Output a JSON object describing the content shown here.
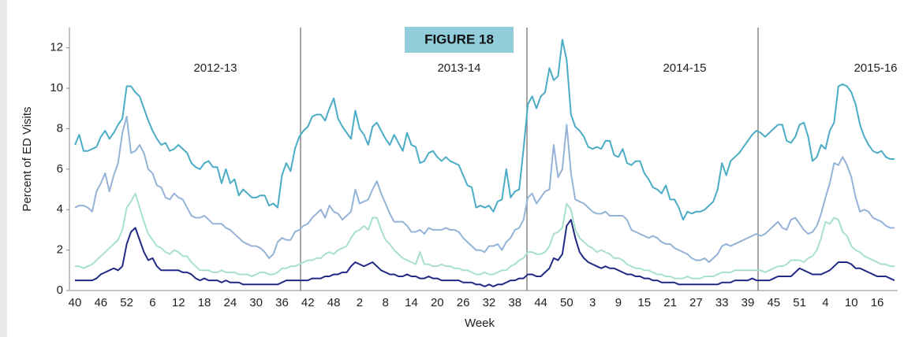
{
  "chart_data": {
    "type": "line",
    "figure_label": "FIGURE 18",
    "y_label": "Percent of ED Visits",
    "x_label": "Week",
    "annotations": [
      "2012-13",
      "2013-14",
      "2014-15",
      "2015-16"
    ],
    "categories": [
      "40",
      null,
      null,
      null,
      null,
      null,
      "46",
      null,
      null,
      null,
      null,
      null,
      "52",
      null,
      null,
      null,
      null,
      null,
      "6",
      null,
      null,
      null,
      null,
      null,
      "12",
      null,
      null,
      null,
      null,
      null,
      "18",
      null,
      null,
      null,
      null,
      null,
      "24",
      null,
      null,
      null,
      null,
      null,
      "30",
      null,
      null,
      null,
      null,
      null,
      "36",
      null,
      null,
      null,
      null,
      null,
      "42",
      null,
      null,
      null,
      null,
      null,
      "48",
      null,
      null,
      null,
      null,
      null,
      "2",
      null,
      null,
      null,
      null,
      null,
      "8",
      null,
      null,
      null,
      null,
      null,
      "14",
      null,
      null,
      null,
      null,
      null,
      "20",
      null,
      null,
      null,
      null,
      null,
      "26",
      null,
      null,
      null,
      null,
      null,
      "32",
      null,
      null,
      null,
      null,
      null,
      "38",
      null,
      null,
      null,
      null,
      null,
      "44",
      null,
      null,
      null,
      null,
      null,
      "50",
      null,
      null,
      null,
      null,
      null,
      "3",
      null,
      null,
      null,
      null,
      null,
      "9",
      null,
      null,
      null,
      null,
      null,
      "15",
      null,
      null,
      null,
      null,
      null,
      "21",
      null,
      null,
      null,
      null,
      null,
      "27",
      null,
      null,
      null,
      null,
      null,
      "33",
      null,
      null,
      null,
      null,
      null,
      "39",
      null,
      null,
      null,
      null,
      null,
      "45",
      null,
      null,
      null,
      null,
      null,
      "51",
      null,
      null,
      null,
      null,
      null,
      "4",
      null,
      null,
      null,
      null,
      null,
      "10",
      null,
      null,
      null,
      null,
      null,
      "16",
      null,
      null,
      null,
      null
    ],
    "series": [
      {
        "color": "#4bacc6",
        "values": [
          7.2,
          7.7,
          6.9,
          6.9,
          7.0,
          7.1,
          7.6,
          7.9,
          7.5,
          7.8,
          8.2,
          8.5,
          10.1,
          10.1,
          9.8,
          9.6,
          9.0,
          8.4,
          7.9,
          7.5,
          7.2,
          7.3,
          6.9,
          7.0,
          7.2,
          7.0,
          6.8,
          6.3,
          6.1,
          6.0,
          6.3,
          6.4,
          6.1,
          6.1,
          5.3,
          6.0,
          5.3,
          5.5,
          4.7,
          5.0,
          4.8,
          4.6,
          4.6,
          4.7,
          4.7,
          4.2,
          4.3,
          4.1,
          5.7,
          6.3,
          5.9,
          7.0,
          7.6,
          7.9,
          8.1,
          8.6,
          8.7,
          8.7,
          8.4,
          9.0,
          9.5,
          8.5,
          8.1,
          7.8,
          7.5,
          8.9,
          8.0,
          7.7,
          7.2,
          8.1,
          8.3,
          7.9,
          7.5,
          7.2,
          7.7,
          7.3,
          6.9,
          7.8,
          7.2,
          7.1,
          6.3,
          6.4,
          6.8,
          6.9,
          6.6,
          6.4,
          6.6,
          6.4,
          6.3,
          6.2,
          5.7,
          5.2,
          5.1,
          4.1,
          4.2,
          4.1,
          4.2,
          3.9,
          4.4,
          4.5,
          6.0,
          4.6,
          4.9,
          5.0,
          7.0,
          9.2,
          9.6,
          9.0,
          9.6,
          9.8,
          11.0,
          10.4,
          10.6,
          12.4,
          11.4,
          8.7,
          8.1,
          7.9,
          7.6,
          7.1,
          7.0,
          7.1,
          7.0,
          7.4,
          7.4,
          6.7,
          6.6,
          7.0,
          6.3,
          6.2,
          6.4,
          6.4,
          5.8,
          5.5,
          5.1,
          5.0,
          4.8,
          5.2,
          4.5,
          4.5,
          4.1,
          3.5,
          3.9,
          3.8,
          3.9,
          3.9,
          4.0,
          4.2,
          4.4,
          5.0,
          6.3,
          5.7,
          6.4,
          6.6,
          6.8,
          7.1,
          7.4,
          7.7,
          7.9,
          7.8,
          7.6,
          7.8,
          8.0,
          8.2,
          8.2,
          7.4,
          7.3,
          7.6,
          8.2,
          8.3,
          7.6,
          6.4,
          6.6,
          7.2,
          7.0,
          7.9,
          8.3,
          10.1,
          10.2,
          10.1,
          9.8,
          9.2,
          8.2,
          7.6,
          7.2,
          6.9,
          6.8,
          6.9,
          6.6,
          6.5,
          6.5
        ]
      },
      {
        "color": "#95b3d7",
        "values": [
          4.1,
          4.2,
          4.2,
          4.1,
          3.9,
          4.9,
          5.3,
          5.8,
          4.9,
          5.7,
          6.3,
          7.8,
          8.6,
          6.8,
          6.9,
          7.2,
          6.8,
          6.0,
          5.8,
          5.2,
          5.1,
          4.6,
          4.5,
          4.8,
          4.6,
          4.5,
          4.1,
          3.7,
          3.6,
          3.6,
          3.7,
          3.5,
          3.3,
          3.3,
          3.3,
          3.1,
          3.0,
          2.8,
          2.6,
          2.4,
          2.3,
          2.2,
          2.2,
          2.1,
          1.9,
          1.6,
          1.8,
          2.4,
          2.6,
          2.5,
          2.5,
          2.9,
          3.0,
          3.2,
          3.3,
          3.6,
          3.8,
          4.0,
          3.6,
          4.2,
          3.9,
          3.8,
          3.5,
          3.7,
          3.9,
          5.0,
          4.3,
          4.4,
          4.5,
          5.0,
          5.4,
          4.8,
          4.3,
          3.8,
          3.4,
          3.4,
          3.4,
          3.2,
          2.9,
          2.9,
          3.0,
          2.8,
          3.1,
          3.0,
          3.0,
          3.0,
          3.1,
          3.0,
          3.0,
          2.9,
          2.6,
          2.4,
          2.2,
          2.0,
          2.0,
          1.9,
          2.2,
          2.2,
          2.3,
          2.0,
          2.4,
          2.6,
          3.0,
          3.1,
          3.5,
          4.6,
          4.8,
          4.3,
          4.6,
          4.9,
          5.0,
          7.2,
          5.6,
          6.0,
          8.2,
          5.8,
          4.5,
          4.4,
          4.3,
          4.1,
          3.9,
          3.8,
          3.8,
          3.9,
          3.7,
          3.7,
          3.7,
          3.7,
          3.5,
          3.0,
          2.9,
          2.8,
          2.7,
          2.6,
          2.7,
          2.6,
          2.4,
          2.3,
          2.3,
          2.1,
          2.0,
          1.9,
          1.8,
          1.6,
          1.5,
          1.5,
          1.6,
          1.4,
          1.6,
          1.8,
          2.2,
          2.3,
          2.2,
          2.3,
          2.4,
          2.5,
          2.6,
          2.7,
          2.8,
          2.7,
          2.8,
          3.0,
          3.2,
          3.4,
          3.1,
          3.0,
          3.5,
          3.6,
          3.3,
          3.0,
          2.8,
          2.9,
          3.2,
          3.8,
          4.6,
          5.3,
          6.3,
          6.2,
          6.6,
          6.2,
          5.6,
          4.6,
          3.9,
          4.0,
          3.9,
          3.6,
          3.5,
          3.4,
          3.2,
          3.1,
          3.1
        ]
      },
      {
        "color": "#a8e0cc",
        "values": [
          1.2,
          1.2,
          1.1,
          1.2,
          1.3,
          1.5,
          1.7,
          1.9,
          2.1,
          2.3,
          2.5,
          3.0,
          4.1,
          4.4,
          4.8,
          4.1,
          3.4,
          2.8,
          2.5,
          2.2,
          2.1,
          1.9,
          1.8,
          2.0,
          1.9,
          1.7,
          1.7,
          1.4,
          1.2,
          1.0,
          1.0,
          1.0,
          0.9,
          0.9,
          1.0,
          0.9,
          0.9,
          0.9,
          0.8,
          0.8,
          0.8,
          0.7,
          0.8,
          0.9,
          0.9,
          0.8,
          0.8,
          0.9,
          1.1,
          1.1,
          1.2,
          1.2,
          1.3,
          1.4,
          1.5,
          1.5,
          1.6,
          1.6,
          1.8,
          1.9,
          1.8,
          2.0,
          2.1,
          2.2,
          2.6,
          2.9,
          3.0,
          3.2,
          3.0,
          3.6,
          3.6,
          3.0,
          2.5,
          2.3,
          2.0,
          1.8,
          1.6,
          1.5,
          1.4,
          1.3,
          1.9,
          1.3,
          1.3,
          1.2,
          1.2,
          1.3,
          1.2,
          1.2,
          1.1,
          1.1,
          1.0,
          1.0,
          0.9,
          0.8,
          0.8,
          0.9,
          0.8,
          0.8,
          0.9,
          1.0,
          1.0,
          1.2,
          1.3,
          1.5,
          1.6,
          1.9,
          1.9,
          1.8,
          1.8,
          1.9,
          2.2,
          2.8,
          2.9,
          3.1,
          4.3,
          4.0,
          3.0,
          2.6,
          2.4,
          2.2,
          2.1,
          1.9,
          2.0,
          1.9,
          1.8,
          1.6,
          1.6,
          1.5,
          1.3,
          1.2,
          1.1,
          1.1,
          1.0,
          1.0,
          0.9,
          0.8,
          0.8,
          0.7,
          0.7,
          0.6,
          0.6,
          0.6,
          0.7,
          0.6,
          0.6,
          0.6,
          0.7,
          0.7,
          0.7,
          0.8,
          0.9,
          0.9,
          0.9,
          1.0,
          1.0,
          1.0,
          1.0,
          1.0,
          1.0,
          1.0,
          0.9,
          1.0,
          1.1,
          1.2,
          1.2,
          1.3,
          1.5,
          1.5,
          1.5,
          1.4,
          1.6,
          1.7,
          2.0,
          2.6,
          3.4,
          3.3,
          3.6,
          3.5,
          2.9,
          2.7,
          2.2,
          2.0,
          1.9,
          1.7,
          1.6,
          1.5,
          1.4,
          1.3,
          1.3,
          1.2,
          1.2
        ]
      },
      {
        "color": "#202a84",
        "values": [
          0.5,
          0.5,
          0.5,
          0.5,
          0.5,
          0.6,
          0.8,
          0.9,
          1.0,
          1.1,
          1.0,
          1.2,
          2.3,
          2.9,
          3.1,
          2.5,
          1.9,
          1.5,
          1.6,
          1.2,
          1.0,
          1.0,
          1.0,
          1.0,
          1.0,
          0.9,
          0.9,
          0.8,
          0.6,
          0.5,
          0.6,
          0.5,
          0.5,
          0.5,
          0.4,
          0.5,
          0.4,
          0.4,
          0.4,
          0.3,
          0.3,
          0.3,
          0.3,
          0.3,
          0.3,
          0.3,
          0.3,
          0.3,
          0.4,
          0.5,
          0.5,
          0.5,
          0.5,
          0.5,
          0.5,
          0.6,
          0.6,
          0.6,
          0.7,
          0.7,
          0.8,
          0.8,
          0.9,
          0.9,
          1.2,
          1.4,
          1.3,
          1.2,
          1.3,
          1.4,
          1.2,
          1.0,
          0.9,
          0.8,
          0.8,
          0.7,
          0.7,
          0.8,
          0.7,
          0.7,
          0.6,
          0.6,
          0.7,
          0.6,
          0.6,
          0.5,
          0.5,
          0.5,
          0.5,
          0.5,
          0.4,
          0.4,
          0.4,
          0.3,
          0.3,
          0.2,
          0.3,
          0.2,
          0.3,
          0.3,
          0.4,
          0.5,
          0.5,
          0.6,
          0.6,
          0.8,
          0.8,
          0.7,
          0.7,
          0.9,
          1.1,
          1.6,
          1.5,
          1.8,
          3.2,
          3.5,
          2.6,
          1.9,
          1.6,
          1.4,
          1.3,
          1.2,
          1.1,
          1.2,
          1.1,
          1.1,
          1.0,
          0.9,
          0.8,
          0.8,
          0.7,
          0.7,
          0.6,
          0.6,
          0.5,
          0.5,
          0.4,
          0.4,
          0.4,
          0.4,
          0.3,
          0.3,
          0.3,
          0.3,
          0.3,
          0.3,
          0.3,
          0.3,
          0.3,
          0.3,
          0.4,
          0.4,
          0.4,
          0.5,
          0.5,
          0.5,
          0.5,
          0.6,
          0.5,
          0.5,
          0.5,
          0.5,
          0.6,
          0.7,
          0.7,
          0.7,
          0.7,
          0.9,
          1.1,
          1.0,
          0.9,
          0.8,
          0.8,
          0.8,
          0.9,
          1.0,
          1.2,
          1.4,
          1.4,
          1.4,
          1.3,
          1.1,
          1.1,
          1.0,
          0.9,
          0.8,
          0.7,
          0.7,
          0.7,
          0.6,
          0.5
        ]
      }
    ],
    "ylim": [
      0,
      13
    ],
    "yticks": [
      0,
      2,
      4,
      6,
      8,
      10,
      12
    ],
    "grid": false
  }
}
